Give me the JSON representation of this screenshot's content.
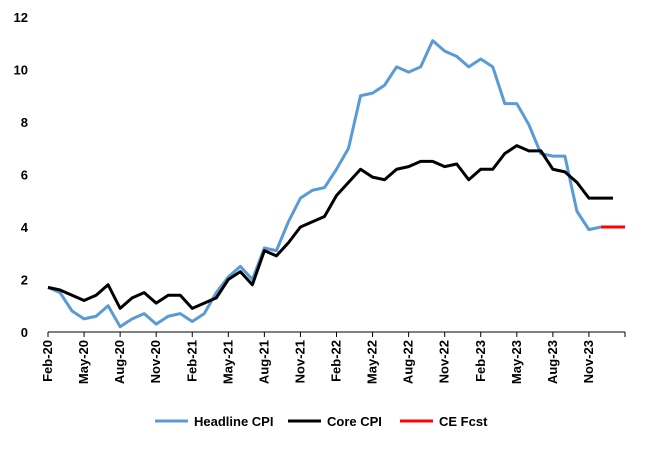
{
  "chart_data": {
    "type": "line",
    "title": "",
    "xlabel": "",
    "ylabel": "",
    "ylim": [
      0,
      12
    ],
    "y_ticks": [
      "0",
      "2",
      "4",
      "6",
      "8",
      "10",
      "12"
    ],
    "grid": false,
    "legend_position": "bottom",
    "x": [
      "Feb-20",
      "Mar-20",
      "Apr-20",
      "May-20",
      "Jun-20",
      "Jul-20",
      "Aug-20",
      "Sep-20",
      "Oct-20",
      "Nov-20",
      "Dec-20",
      "Jan-21",
      "Feb-21",
      "Mar-21",
      "Apr-21",
      "May-21",
      "Jun-21",
      "Jul-21",
      "Aug-21",
      "Sep-21",
      "Oct-21",
      "Nov-21",
      "Dec-21",
      "Jan-22",
      "Feb-22",
      "Mar-22",
      "Apr-22",
      "May-22",
      "Jun-22",
      "Jul-22",
      "Aug-22",
      "Sep-22",
      "Oct-22",
      "Nov-22",
      "Dec-22",
      "Jan-23",
      "Feb-23",
      "Mar-23",
      "Apr-23",
      "May-23",
      "Jun-23",
      "Jul-23",
      "Aug-23",
      "Sep-23",
      "Oct-23",
      "Nov-23",
      "Dec-23",
      "Jan-24",
      "Feb-24"
    ],
    "x_tick_labels": [
      "Feb-20",
      "May-20",
      "Aug-20",
      "Nov-20",
      "Feb-21",
      "May-21",
      "Aug-21",
      "Nov-21",
      "Feb-22",
      "May-22",
      "Aug-22",
      "Nov-22",
      "Feb-23",
      "May-23",
      "Aug-23",
      "Nov-23"
    ],
    "series": [
      {
        "name": "Headline CPI",
        "color": "#5B9BD5",
        "values": [
          1.7,
          1.5,
          0.8,
          0.5,
          0.6,
          1.0,
          0.2,
          0.5,
          0.7,
          0.3,
          0.6,
          0.7,
          0.4,
          0.7,
          1.5,
          2.1,
          2.5,
          2.0,
          3.2,
          3.1,
          4.2,
          5.1,
          5.4,
          5.5,
          6.2,
          7.0,
          9.0,
          9.1,
          9.4,
          10.1,
          9.9,
          10.1,
          11.1,
          10.7,
          10.5,
          10.1,
          10.4,
          10.1,
          8.7,
          8.7,
          7.9,
          6.8,
          6.7,
          6.7,
          4.6,
          3.9,
          4.0,
          null,
          null
        ]
      },
      {
        "name": "Core CPI",
        "color": "#000000",
        "values": [
          1.7,
          1.6,
          1.4,
          1.2,
          1.4,
          1.8,
          0.9,
          1.3,
          1.5,
          1.1,
          1.4,
          1.4,
          0.9,
          1.1,
          1.3,
          2.0,
          2.3,
          1.8,
          3.1,
          2.9,
          3.4,
          4.0,
          4.2,
          4.4,
          5.2,
          5.7,
          6.2,
          5.9,
          5.8,
          6.2,
          6.3,
          6.5,
          6.5,
          6.3,
          6.4,
          5.8,
          6.2,
          6.2,
          6.8,
          7.1,
          6.9,
          6.9,
          6.2,
          6.1,
          5.7,
          5.1,
          5.1,
          5.1,
          null
        ]
      },
      {
        "name": "CE Fcst",
        "color": "#FF0000",
        "values": [
          null,
          null,
          null,
          null,
          null,
          null,
          null,
          null,
          null,
          null,
          null,
          null,
          null,
          null,
          null,
          null,
          null,
          null,
          null,
          null,
          null,
          null,
          null,
          null,
          null,
          null,
          null,
          null,
          null,
          null,
          null,
          null,
          null,
          null,
          null,
          null,
          null,
          null,
          null,
          null,
          null,
          null,
          null,
          null,
          null,
          null,
          4.0,
          4.0,
          4.0
        ]
      }
    ]
  }
}
